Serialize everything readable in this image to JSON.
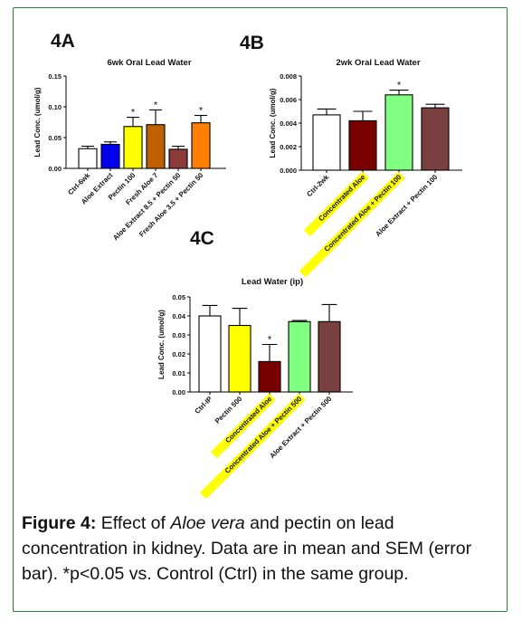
{
  "panel_labels": [
    "4A",
    "4B",
    "4C"
  ],
  "caption": {
    "label": "Figure 4:",
    "text_1": " Effect of ",
    "italic": "Aloe vera",
    "text_2": " and pectin on lead concentration in kidney. Data are in mean and SEM (error bar). *p<0.05 vs. Control (Ctrl) in the same group."
  },
  "highlight_color": "#ffff00",
  "chart_data": [
    {
      "type": "bar",
      "title": "6wk Oral Lead Water",
      "ylabel": "Lead Conc. (umol/g)",
      "ylim": [
        0,
        0.15
      ],
      "yticks": [
        "0.00",
        "0.05",
        "0.10",
        "0.15"
      ],
      "categories": [
        "Ctrl-6wk",
        "Aloe Extract",
        "Pectin 100",
        "Fresh Aloe 7",
        "Aloe Extract 8.5 + Pectin 50",
        "Fresh Aloe 3.5 + Pectin 50"
      ],
      "values": [
        0.032,
        0.039,
        0.068,
        0.071,
        0.031,
        0.074
      ],
      "errors": [
        0.004,
        0.004,
        0.015,
        0.024,
        0.005,
        0.012
      ],
      "colors": [
        "#ffffff",
        "#0000ee",
        "#ffff00",
        "#c06000",
        "#8b3a3a",
        "#ff8000"
      ],
      "significant": [
        false,
        false,
        true,
        true,
        false,
        true
      ],
      "highlighted_labels": []
    },
    {
      "type": "bar",
      "title": "2wk Oral Lead Water",
      "ylabel": "Lead Conc. (umol/g)",
      "ylim": [
        0,
        0.008
      ],
      "yticks": [
        "0.000",
        "0.002",
        "0.004",
        "0.006",
        "0.008"
      ],
      "categories": [
        "Ctrl-2wk",
        "Concentrated Aloe",
        "Concentrated Aloe + Pectin 100",
        "Aloe Extract + Pectin 100"
      ],
      "values": [
        0.0047,
        0.0042,
        0.0064,
        0.0053
      ],
      "errors": [
        0.0005,
        0.0008,
        0.0004,
        0.0003
      ],
      "colors": [
        "#ffffff",
        "#7a0000",
        "#80ff80",
        "#7a4040"
      ],
      "significant": [
        false,
        false,
        true,
        false
      ],
      "highlighted_labels": [
        1,
        2
      ]
    },
    {
      "type": "bar",
      "title": "Lead Water (ip)",
      "ylabel": "Lead Conc. (umol/g)",
      "ylim": [
        0,
        0.05
      ],
      "yticks": [
        "0.00",
        "0.01",
        "0.02",
        "0.03",
        "0.04",
        "0.05"
      ],
      "categories": [
        "Ctrl-IP",
        "Pectin 500",
        "Concentrated Aloe",
        "Concentrated Aloe + Pectin 500",
        "Aloe Extract + Pectin 500"
      ],
      "values": [
        0.04,
        0.035,
        0.016,
        0.037,
        0.037
      ],
      "errors": [
        0.0055,
        0.009,
        0.009,
        0.0006,
        0.009
      ],
      "colors": [
        "#ffffff",
        "#ffff00",
        "#7a0000",
        "#80ff80",
        "#7a4040"
      ],
      "significant": [
        false,
        false,
        true,
        false,
        false
      ],
      "highlighted_labels": [
        2,
        3
      ]
    }
  ]
}
